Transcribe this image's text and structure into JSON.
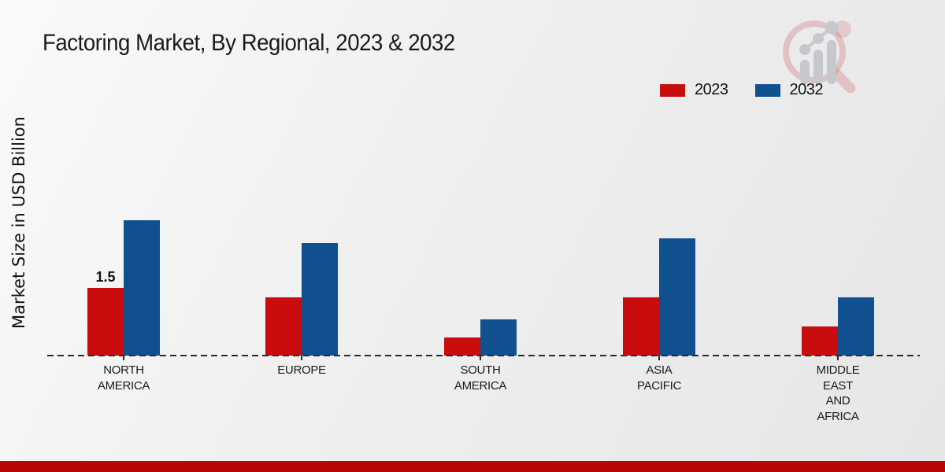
{
  "header": {
    "title": "Factoring Market, By Regional, 2023 & 2032"
  },
  "y_axis": {
    "label": "Market Size in USD Billion"
  },
  "legend": {
    "items": [
      {
        "label": "2023"
      },
      {
        "label": "2032"
      }
    ]
  },
  "chart_data": {
    "type": "bar",
    "title": "Factoring Market, By Regional, 2023 & 2032",
    "xlabel": "",
    "ylabel": "Market Size in USD Billion",
    "ylim": [
      0,
      3.5
    ],
    "grid": false,
    "legend_position": "top-right",
    "baseline_style": "dashed",
    "categories": [
      "NORTH AMERICA",
      "EUROPE",
      "SOUTH AMERICA",
      "ASIA PACIFIC",
      "MIDDLE EAST AND AFRICA"
    ],
    "category_label_lines": [
      [
        "NORTH",
        "AMERICA"
      ],
      [
        "EUROPE"
      ],
      [
        "SOUTH",
        "AMERICA"
      ],
      [
        "ASIA",
        "PACIFIC"
      ],
      [
        "MIDDLE",
        "EAST",
        "AND",
        "AFRICA"
      ]
    ],
    "series": [
      {
        "name": "2023",
        "color": "#c90d0e",
        "values": [
          1.5,
          1.3,
          0.4,
          1.3,
          0.65
        ]
      },
      {
        "name": "2032",
        "color": "#10508f",
        "values": [
          3.0,
          2.5,
          0.8,
          2.6,
          1.3
        ]
      }
    ],
    "data_labels": [
      {
        "series_index": 0,
        "category_index": 0,
        "text": "1.5"
      }
    ]
  },
  "footer": {
    "band_color": "#b90505"
  },
  "colors": {
    "text": "#1a1a1a",
    "baseline": "#2b2b2b"
  }
}
